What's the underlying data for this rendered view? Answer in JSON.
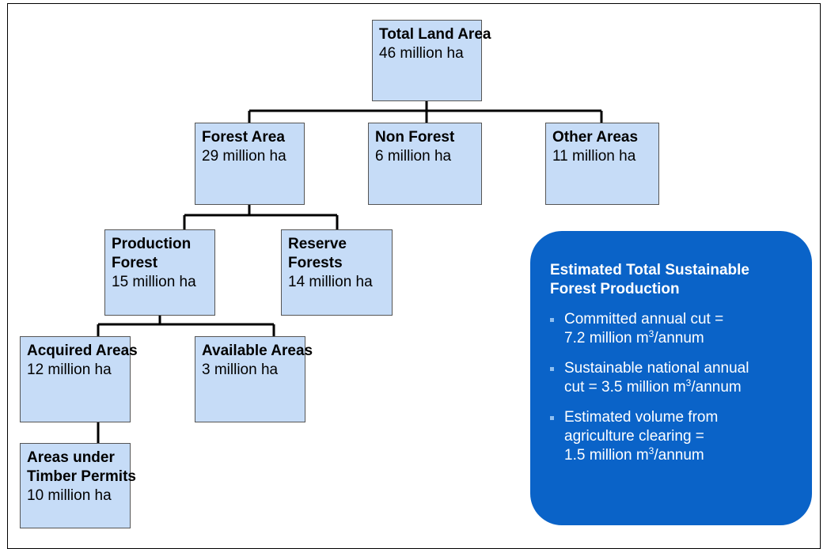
{
  "nodes": [
    {
      "title": [
        "Total Land Area"
      ],
      "value": "46 million ha"
    },
    {
      "title": [
        "Forest Area"
      ],
      "value": "29 million ha"
    },
    {
      "title": [
        "Non Forest"
      ],
      "value": "6 million ha"
    },
    {
      "title": [
        "Other Areas"
      ],
      "value": "11 million ha"
    },
    {
      "title": [
        "Production",
        "Forest"
      ],
      "value": "15 million ha"
    },
    {
      "title": [
        "Reserve",
        "Forests"
      ],
      "value": "14 million ha"
    },
    {
      "title": [
        "Acquired Areas"
      ],
      "value": "12 million ha"
    },
    {
      "title": [
        "Available Areas"
      ],
      "value": "3 million ha"
    },
    {
      "title": [
        "Areas under",
        "Timber Permits"
      ],
      "value": "10 million ha"
    }
  ],
  "summary": {
    "title": [
      "Estimated Total Sustainable",
      "Forest Production"
    ],
    "bullets": [
      {
        "lines": [
          "Committed annual cut =",
          "7.2 million m"
        ],
        "sup": "3",
        "tail": "/annum"
      },
      {
        "lines": [
          "Sustainable national annual",
          "cut = 3.5 million m"
        ],
        "sup": "3",
        "tail": "/annum"
      },
      {
        "lines": [
          "Estimated volume from",
          "agriculture clearing =",
          "1.5 million m"
        ],
        "sup": "3",
        "tail": "/annum"
      }
    ]
  }
}
